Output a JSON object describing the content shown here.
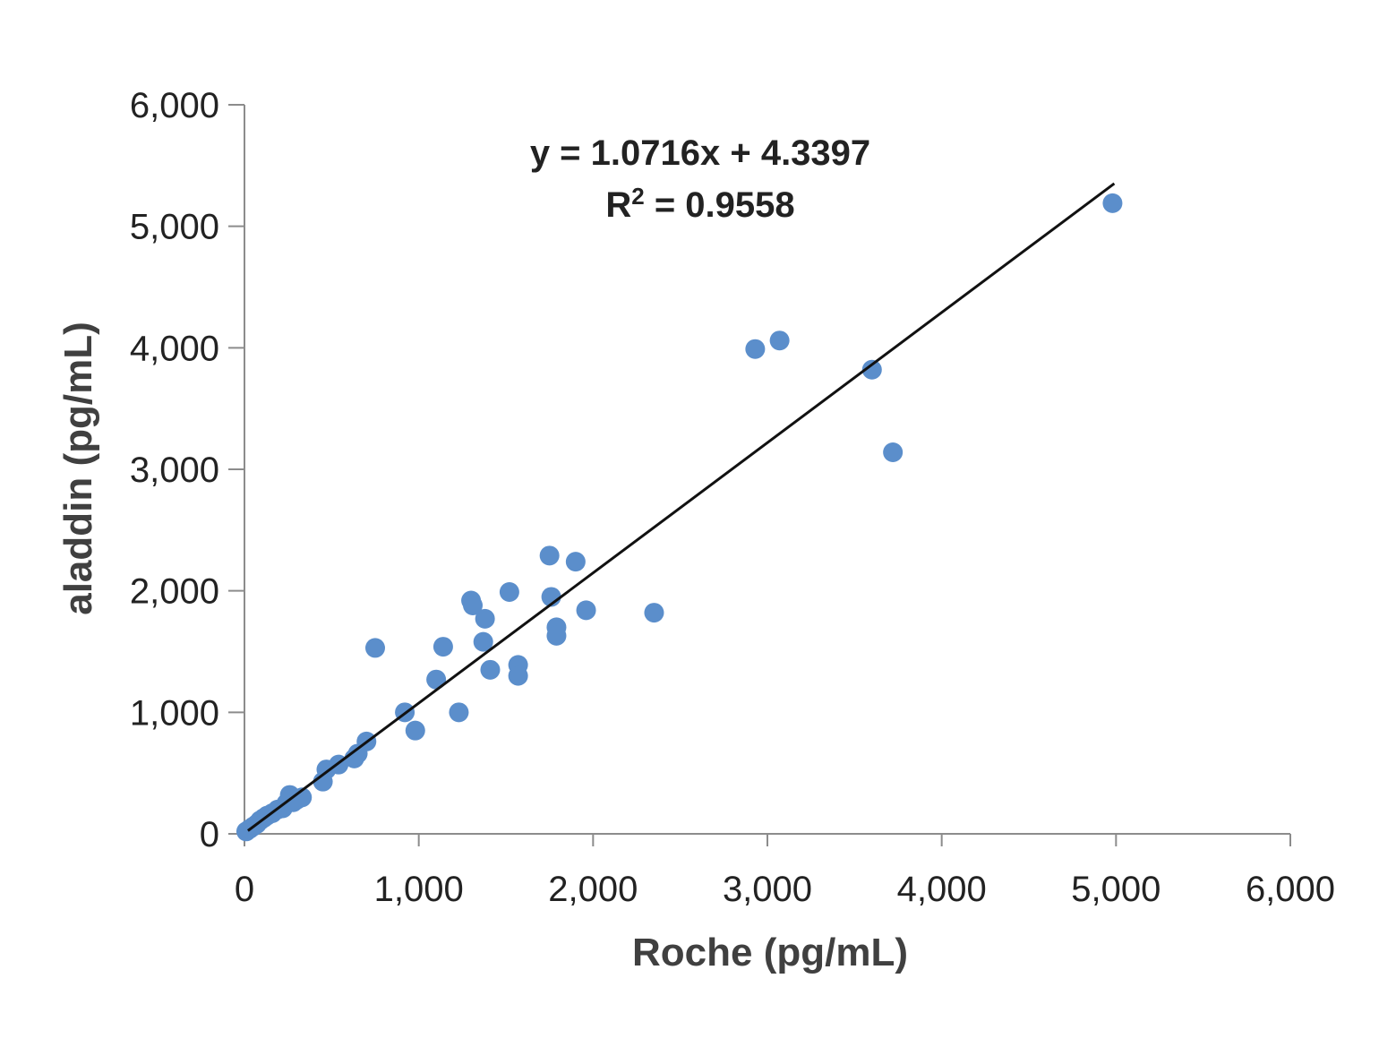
{
  "chart_data": {
    "type": "scatter",
    "xlabel": "Roche (pg/mL)",
    "ylabel": "aladdin (pg/mL)",
    "xlim": [
      0,
      6000
    ],
    "ylim": [
      0,
      6000
    ],
    "x_ticks": [
      "0",
      "1,000",
      "2,000",
      "3,000",
      "4,000",
      "5,000",
      "6,000"
    ],
    "y_ticks": [
      "0",
      "1,000",
      "2,000",
      "3,000",
      "4,000",
      "5,000",
      "6,000"
    ],
    "grid": false,
    "annotations": {
      "equation": "y = 1.0716x + 4.3397",
      "r2_prefix": "R",
      "r2_sup": "2",
      "r2_suffix": " = 0.9558"
    },
    "trendline": {
      "slope": 1.0716,
      "intercept": 4.3397,
      "x_range": [
        20,
        4990
      ]
    },
    "colors": {
      "points": "#5b8ecb",
      "line": "#111111",
      "axis": "#8c8c8c"
    },
    "series": [
      {
        "points": [
          [
            10,
            20
          ],
          [
            30,
            40
          ],
          [
            50,
            60
          ],
          [
            70,
            80
          ],
          [
            90,
            110
          ],
          [
            110,
            130
          ],
          [
            130,
            150
          ],
          [
            160,
            170
          ],
          [
            190,
            200
          ],
          [
            220,
            210
          ],
          [
            240,
            250
          ],
          [
            260,
            320
          ],
          [
            280,
            260
          ],
          [
            300,
            280
          ],
          [
            330,
            300
          ],
          [
            450,
            430
          ],
          [
            470,
            530
          ],
          [
            540,
            570
          ],
          [
            630,
            620
          ],
          [
            650,
            660
          ],
          [
            700,
            760
          ],
          [
            750,
            1530
          ],
          [
            920,
            1000
          ],
          [
            980,
            850
          ],
          [
            1100,
            1270
          ],
          [
            1140,
            1540
          ],
          [
            1230,
            1000
          ],
          [
            1300,
            1920
          ],
          [
            1310,
            1880
          ],
          [
            1370,
            1580
          ],
          [
            1380,
            1770
          ],
          [
            1410,
            1350
          ],
          [
            1520,
            1990
          ],
          [
            1570,
            1390
          ],
          [
            1570,
            1300
          ],
          [
            1750,
            2290
          ],
          [
            1760,
            1950
          ],
          [
            1790,
            1700
          ],
          [
            1790,
            1630
          ],
          [
            1900,
            2240
          ],
          [
            1960,
            1840
          ],
          [
            2350,
            1820
          ],
          [
            2930,
            3990
          ],
          [
            3070,
            4060
          ],
          [
            3600,
            3820
          ],
          [
            3720,
            3140
          ],
          [
            4980,
            5190
          ]
        ]
      }
    ]
  }
}
